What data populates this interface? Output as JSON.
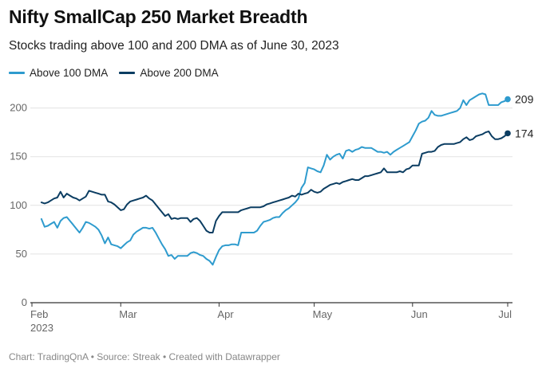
{
  "title": "Nifty SmallCap 250 Market Breadth",
  "subtitle": "Stocks trading above 100 and 200 DMA as of June 30, 2023",
  "footer": {
    "text": "Chart: TradingQnA • Source: Streak • Created with Datawrapper"
  },
  "colors": {
    "dma100": "#2e9bce",
    "dma200": "#0b3d62",
    "grid": "#e2e2e2",
    "axis": "#333333"
  },
  "chart_data": {
    "type": "line",
    "title": "Nifty SmallCap 250 Market Breadth",
    "xlabel": "",
    "ylabel": "",
    "ylim": [
      0,
      215
    ],
    "yticks": [
      0,
      50,
      100,
      150,
      200
    ],
    "xlim_days": [
      0,
      150
    ],
    "xticks": [
      {
        "day": 0,
        "label": "Feb",
        "sublabel": "2023"
      },
      {
        "day": 28,
        "label": "Mar",
        "sublabel": ""
      },
      {
        "day": 59,
        "label": "Apr",
        "sublabel": ""
      },
      {
        "day": 89,
        "label": "May",
        "sublabel": ""
      },
      {
        "day": 120,
        "label": "Jun",
        "sublabel": ""
      },
      {
        "day": 150,
        "label": "Jul",
        "sublabel": ""
      }
    ],
    "legend_position": "top-left",
    "series": [
      {
        "name": "Above 100 DMA",
        "color_key": "dma100",
        "end_label": "209",
        "points": [
          [
            3,
            86
          ],
          [
            4,
            78
          ],
          [
            5,
            79
          ],
          [
            6,
            81
          ],
          [
            7,
            83
          ],
          [
            8,
            77
          ],
          [
            9,
            84
          ],
          [
            10,
            87
          ],
          [
            11,
            88
          ],
          [
            12,
            84
          ],
          [
            13,
            80
          ],
          [
            14,
            76
          ],
          [
            15,
            72
          ],
          [
            16,
            77
          ],
          [
            17,
            83
          ],
          [
            18,
            82
          ],
          [
            19,
            80
          ],
          [
            20,
            78
          ],
          [
            21,
            75
          ],
          [
            22,
            69
          ],
          [
            23,
            61
          ],
          [
            24,
            67
          ],
          [
            25,
            60
          ],
          [
            26,
            59
          ],
          [
            27,
            58
          ],
          [
            28,
            56
          ],
          [
            29,
            59
          ],
          [
            30,
            62
          ],
          [
            31,
            64
          ],
          [
            32,
            70
          ],
          [
            33,
            73
          ],
          [
            34,
            75
          ],
          [
            35,
            77
          ],
          [
            36,
            77
          ],
          [
            37,
            76
          ],
          [
            38,
            77
          ],
          [
            39,
            72
          ],
          [
            40,
            66
          ],
          [
            41,
            60
          ],
          [
            42,
            55
          ],
          [
            43,
            48
          ],
          [
            44,
            49
          ],
          [
            45,
            45
          ],
          [
            46,
            48
          ],
          [
            47,
            48
          ],
          [
            48,
            48
          ],
          [
            49,
            48
          ],
          [
            50,
            51
          ],
          [
            51,
            52
          ],
          [
            52,
            51
          ],
          [
            53,
            49
          ],
          [
            54,
            48
          ],
          [
            55,
            45
          ],
          [
            56,
            43
          ],
          [
            57,
            39
          ],
          [
            58,
            47
          ],
          [
            59,
            54
          ],
          [
            60,
            58
          ],
          [
            61,
            59
          ],
          [
            62,
            59
          ],
          [
            63,
            60
          ],
          [
            64,
            60
          ],
          [
            65,
            59
          ],
          [
            66,
            72
          ],
          [
            67,
            72
          ],
          [
            68,
            72
          ],
          [
            69,
            72
          ],
          [
            70,
            72
          ],
          [
            71,
            74
          ],
          [
            72,
            79
          ],
          [
            73,
            83
          ],
          [
            74,
            84
          ],
          [
            75,
            85
          ],
          [
            76,
            87
          ],
          [
            77,
            88
          ],
          [
            78,
            88
          ],
          [
            79,
            92
          ],
          [
            80,
            95
          ],
          [
            81,
            97
          ],
          [
            82,
            100
          ],
          [
            83,
            103
          ],
          [
            84,
            107
          ],
          [
            85,
            118
          ],
          [
            86,
            123
          ],
          [
            87,
            139
          ],
          [
            88,
            138
          ],
          [
            89,
            137
          ],
          [
            90,
            135
          ],
          [
            91,
            134
          ],
          [
            92,
            141
          ],
          [
            93,
            152
          ],
          [
            94,
            147
          ],
          [
            95,
            150
          ],
          [
            96,
            152
          ],
          [
            97,
            153
          ],
          [
            98,
            148
          ],
          [
            99,
            156
          ],
          [
            100,
            157
          ],
          [
            101,
            155
          ],
          [
            102,
            157
          ],
          [
            103,
            158
          ],
          [
            104,
            160
          ],
          [
            105,
            159
          ],
          [
            106,
            159
          ],
          [
            107,
            159
          ],
          [
            108,
            157
          ],
          [
            109,
            155
          ],
          [
            110,
            155
          ],
          [
            111,
            154
          ],
          [
            112,
            155
          ],
          [
            113,
            152
          ],
          [
            114,
            155
          ],
          [
            115,
            157
          ],
          [
            116,
            159
          ],
          [
            117,
            161
          ],
          [
            118,
            163
          ],
          [
            119,
            165
          ],
          [
            120,
            171
          ],
          [
            121,
            177
          ],
          [
            122,
            184
          ],
          [
            123,
            186
          ],
          [
            124,
            187
          ],
          [
            125,
            190
          ],
          [
            126,
            197
          ],
          [
            127,
            193
          ],
          [
            128,
            192
          ],
          [
            129,
            192
          ],
          [
            130,
            193
          ],
          [
            131,
            194
          ],
          [
            132,
            195
          ],
          [
            133,
            196
          ],
          [
            134,
            197
          ],
          [
            135,
            200
          ],
          [
            136,
            208
          ],
          [
            137,
            203
          ],
          [
            138,
            208
          ],
          [
            139,
            210
          ],
          [
            140,
            212
          ],
          [
            141,
            214
          ],
          [
            142,
            215
          ],
          [
            143,
            214
          ],
          [
            144,
            203
          ],
          [
            145,
            203
          ],
          [
            146,
            203
          ],
          [
            147,
            203
          ],
          [
            148,
            206
          ],
          [
            149,
            207
          ],
          [
            150,
            209
          ]
        ]
      },
      {
        "name": "Above 200 DMA",
        "color_key": "dma200",
        "end_label": "174",
        "points": [
          [
            3,
            103
          ],
          [
            4,
            102
          ],
          [
            5,
            103
          ],
          [
            6,
            105
          ],
          [
            7,
            107
          ],
          [
            8,
            108
          ],
          [
            9,
            114
          ],
          [
            10,
            108
          ],
          [
            11,
            112
          ],
          [
            12,
            110
          ],
          [
            13,
            108
          ],
          [
            14,
            107
          ],
          [
            15,
            105
          ],
          [
            16,
            107
          ],
          [
            17,
            109
          ],
          [
            18,
            115
          ],
          [
            19,
            114
          ],
          [
            20,
            113
          ],
          [
            21,
            112
          ],
          [
            22,
            111
          ],
          [
            23,
            111
          ],
          [
            24,
            104
          ],
          [
            25,
            103
          ],
          [
            26,
            101
          ],
          [
            27,
            98
          ],
          [
            28,
            95
          ],
          [
            29,
            96
          ],
          [
            30,
            101
          ],
          [
            31,
            104
          ],
          [
            32,
            105
          ],
          [
            33,
            106
          ],
          [
            34,
            107
          ],
          [
            35,
            108
          ],
          [
            36,
            110
          ],
          [
            37,
            107
          ],
          [
            38,
            105
          ],
          [
            39,
            101
          ],
          [
            40,
            97
          ],
          [
            41,
            93
          ],
          [
            42,
            89
          ],
          [
            43,
            91
          ],
          [
            44,
            86
          ],
          [
            45,
            87
          ],
          [
            46,
            86
          ],
          [
            47,
            87
          ],
          [
            48,
            87
          ],
          [
            49,
            87
          ],
          [
            50,
            83
          ],
          [
            51,
            86
          ],
          [
            52,
            87
          ],
          [
            53,
            84
          ],
          [
            54,
            79
          ],
          [
            55,
            74
          ],
          [
            56,
            72
          ],
          [
            57,
            72
          ],
          [
            58,
            84
          ],
          [
            59,
            89
          ],
          [
            60,
            93
          ],
          [
            61,
            93
          ],
          [
            62,
            93
          ],
          [
            63,
            93
          ],
          [
            64,
            93
          ],
          [
            65,
            93
          ],
          [
            66,
            95
          ],
          [
            67,
            96
          ],
          [
            68,
            97
          ],
          [
            69,
            98
          ],
          [
            70,
            98
          ],
          [
            71,
            98
          ],
          [
            72,
            98
          ],
          [
            73,
            99
          ],
          [
            74,
            101
          ],
          [
            75,
            102
          ],
          [
            76,
            103
          ],
          [
            77,
            104
          ],
          [
            78,
            105
          ],
          [
            79,
            106
          ],
          [
            80,
            107
          ],
          [
            81,
            108
          ],
          [
            82,
            110
          ],
          [
            83,
            109
          ],
          [
            84,
            112
          ],
          [
            85,
            111
          ],
          [
            86,
            112
          ],
          [
            87,
            113
          ],
          [
            88,
            116
          ],
          [
            89,
            114
          ],
          [
            90,
            113
          ],
          [
            91,
            114
          ],
          [
            92,
            117
          ],
          [
            93,
            119
          ],
          [
            94,
            121
          ],
          [
            95,
            122
          ],
          [
            96,
            123
          ],
          [
            97,
            122
          ],
          [
            98,
            124
          ],
          [
            99,
            125
          ],
          [
            100,
            126
          ],
          [
            101,
            127
          ],
          [
            102,
            126
          ],
          [
            103,
            126
          ],
          [
            104,
            128
          ],
          [
            105,
            130
          ],
          [
            106,
            130
          ],
          [
            107,
            131
          ],
          [
            108,
            132
          ],
          [
            109,
            133
          ],
          [
            110,
            134
          ],
          [
            111,
            138
          ],
          [
            112,
            134
          ],
          [
            113,
            134
          ],
          [
            114,
            134
          ],
          [
            115,
            134
          ],
          [
            116,
            135
          ],
          [
            117,
            134
          ],
          [
            118,
            137
          ],
          [
            119,
            138
          ],
          [
            120,
            141
          ],
          [
            121,
            141
          ],
          [
            122,
            141
          ],
          [
            123,
            153
          ],
          [
            124,
            154
          ],
          [
            125,
            155
          ],
          [
            126,
            155
          ],
          [
            127,
            156
          ],
          [
            128,
            160
          ],
          [
            129,
            162
          ],
          [
            130,
            163
          ],
          [
            131,
            163
          ],
          [
            132,
            163
          ],
          [
            133,
            163
          ],
          [
            134,
            164
          ],
          [
            135,
            165
          ],
          [
            136,
            168
          ],
          [
            137,
            170
          ],
          [
            138,
            167
          ],
          [
            139,
            168
          ],
          [
            140,
            171
          ],
          [
            141,
            172
          ],
          [
            142,
            173
          ],
          [
            143,
            175
          ],
          [
            144,
            176
          ],
          [
            145,
            171
          ],
          [
            146,
            168
          ],
          [
            147,
            168
          ],
          [
            148,
            169
          ],
          [
            149,
            171
          ],
          [
            150,
            174
          ]
        ]
      }
    ]
  }
}
